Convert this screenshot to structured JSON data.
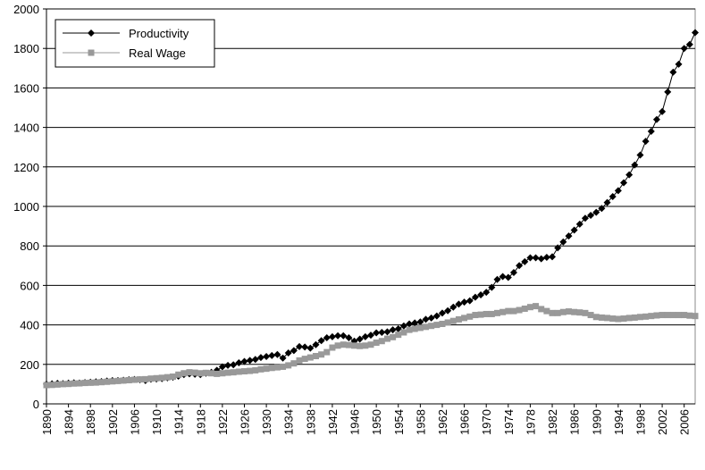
{
  "chart_data": {
    "type": "line",
    "x": [
      1890,
      1891,
      1892,
      1893,
      1894,
      1895,
      1896,
      1897,
      1898,
      1899,
      1900,
      1901,
      1902,
      1903,
      1904,
      1905,
      1906,
      1907,
      1908,
      1909,
      1910,
      1911,
      1912,
      1913,
      1914,
      1915,
      1916,
      1917,
      1918,
      1919,
      1920,
      1921,
      1922,
      1923,
      1924,
      1925,
      1926,
      1927,
      1928,
      1929,
      1930,
      1931,
      1932,
      1933,
      1934,
      1935,
      1936,
      1937,
      1938,
      1939,
      1940,
      1941,
      1942,
      1943,
      1944,
      1945,
      1946,
      1947,
      1948,
      1949,
      1950,
      1951,
      1952,
      1953,
      1954,
      1955,
      1956,
      1957,
      1958,
      1959,
      1960,
      1961,
      1962,
      1963,
      1964,
      1965,
      1966,
      1967,
      1968,
      1969,
      1970,
      1971,
      1972,
      1973,
      1974,
      1975,
      1976,
      1977,
      1978,
      1979,
      1980,
      1981,
      1982,
      1983,
      1984,
      1985,
      1986,
      1987,
      1988,
      1989,
      1990,
      1991,
      1992,
      1993,
      1994,
      1995,
      1996,
      1997,
      1998,
      1999,
      2000,
      2001,
      2002,
      2003,
      2004,
      2005,
      2006,
      2007,
      2008
    ],
    "series": [
      {
        "name": "Productivity",
        "color": "#000000",
        "marker": "diamond",
        "values": [
          100,
          102,
          104,
          103,
          105,
          107,
          106,
          108,
          110,
          112,
          113,
          116,
          118,
          118,
          120,
          122,
          124,
          122,
          118,
          125,
          126,
          128,
          132,
          135,
          140,
          148,
          152,
          150,
          148,
          155,
          160,
          170,
          188,
          195,
          198,
          208,
          215,
          220,
          225,
          235,
          240,
          245,
          250,
          232,
          258,
          270,
          290,
          288,
          282,
          300,
          320,
          335,
          340,
          345,
          345,
          335,
          318,
          328,
          340,
          348,
          360,
          362,
          365,
          375,
          380,
          395,
          405,
          410,
          415,
          428,
          435,
          445,
          460,
          472,
          490,
          505,
          515,
          522,
          540,
          552,
          565,
          590,
          630,
          645,
          640,
          665,
          700,
          720,
          740,
          740,
          735,
          742,
          745,
          790,
          820,
          850,
          880,
          910,
          940,
          955,
          970,
          990,
          1020,
          1050,
          1080,
          1120,
          1160,
          1210,
          1260,
          1330,
          1380,
          1440,
          1480,
          1580,
          1680,
          1720,
          1800,
          1820,
          1880
        ]
      },
      {
        "name": "Real Wage",
        "color": "#999999",
        "marker": "square",
        "values": [
          95,
          96,
          98,
          100,
          101,
          103,
          104,
          106,
          107,
          108,
          110,
          112,
          114,
          116,
          118,
          120,
          122,
          124,
          125,
          128,
          130,
          132,
          135,
          138,
          148,
          155,
          160,
          158,
          155,
          157,
          155,
          152,
          155,
          158,
          160,
          163,
          165,
          167,
          170,
          175,
          178,
          182,
          185,
          188,
          195,
          205,
          220,
          228,
          235,
          242,
          250,
          262,
          285,
          295,
          300,
          298,
          295,
          293,
          295,
          300,
          310,
          318,
          330,
          338,
          350,
          362,
          375,
          380,
          385,
          390,
          395,
          400,
          405,
          412,
          420,
          428,
          435,
          442,
          450,
          452,
          455,
          455,
          460,
          465,
          470,
          470,
          475,
          482,
          490,
          495,
          480,
          470,
          460,
          460,
          465,
          468,
          465,
          463,
          460,
          450,
          440,
          437,
          435,
          432,
          430,
          432,
          435,
          437,
          440,
          442,
          445,
          448,
          450,
          450,
          450,
          450,
          450,
          447,
          445
        ]
      }
    ],
    "xlim": [
      1890,
      2008
    ],
    "xticks": [
      1890,
      1894,
      1898,
      1902,
      1906,
      1910,
      1914,
      1918,
      1922,
      1926,
      1930,
      1934,
      1938,
      1942,
      1946,
      1950,
      1954,
      1958,
      1962,
      1966,
      1970,
      1974,
      1978,
      1982,
      1986,
      1990,
      1994,
      1998,
      2002,
      2006
    ],
    "ylim": [
      0,
      2000
    ],
    "yticks": [
      0,
      200,
      400,
      600,
      800,
      1000,
      1200,
      1400,
      1600,
      1800,
      2000
    ],
    "grid": true,
    "legend": "upper left"
  }
}
